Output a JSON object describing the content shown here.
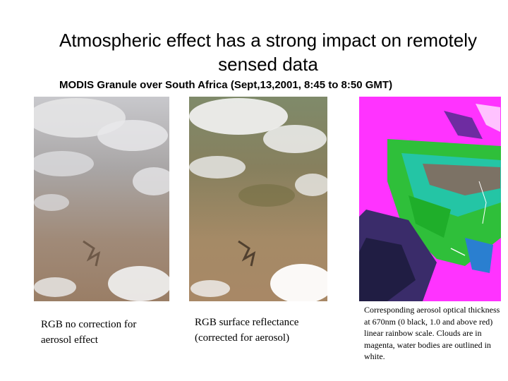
{
  "slide": {
    "title": "Atmospheric effect has a strong impact on remotely sensed data",
    "subtitle": "MODIS Granule over South Africa  (Sept,13,2001, 8:45 to 8:50 GMT)"
  },
  "panels": [
    {
      "name": "rgb-no-correction-image",
      "caption": "RGB no correction for aerosol effect"
    },
    {
      "name": "rgb-surface-reflectance-image",
      "caption": "RGB surface reflectance (corrected for aerosol)"
    },
    {
      "name": "aerosol-optical-thickness-image",
      "caption": "Corresponding aerosol optical thickness  at 670nm (0 black, 1.0 and above red) linear rainbow scale. Clouds are in magenta, water bodies are outlined in white."
    }
  ],
  "colors": {
    "background": "#ffffff",
    "text": "#000000",
    "cloud_magenta": "#ff33ff"
  }
}
